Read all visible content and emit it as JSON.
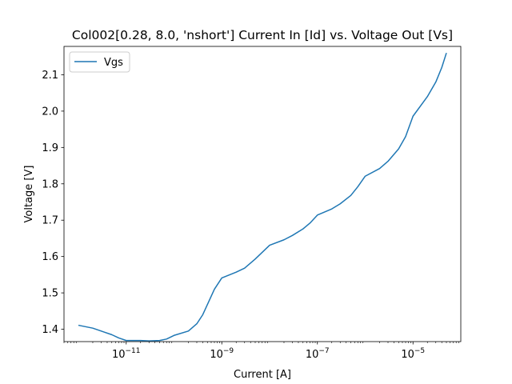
{
  "chart_data": {
    "type": "line",
    "title": "Col002[0.28, 8.0, 'nshort'] Current In [Id] vs. Voltage Out [Vs]",
    "xlabel": "Current [A]",
    "ylabel": "Voltage [V]",
    "xscale": "log",
    "xlim": [
      5e-13,
      0.0001
    ],
    "ylim": [
      1.366,
      2.178
    ],
    "x_ticks": [
      {
        "value": 1e-11,
        "base": "10",
        "exp": "−11"
      },
      {
        "value": 1e-09,
        "base": "10",
        "exp": "−9"
      },
      {
        "value": 1e-07,
        "base": "10",
        "exp": "−7"
      },
      {
        "value": 1e-05,
        "base": "10",
        "exp": "−5"
      }
    ],
    "y_ticks": [
      {
        "value": 1.4,
        "label": "1.4"
      },
      {
        "value": 1.5,
        "label": "1.5"
      },
      {
        "value": 1.6,
        "label": "1.6"
      },
      {
        "value": 1.7,
        "label": "1.7"
      },
      {
        "value": 1.8,
        "label": "1.8"
      },
      {
        "value": 1.9,
        "label": "1.9"
      },
      {
        "value": 2.0,
        "label": "2.0"
      },
      {
        "value": 2.1,
        "label": "2.1"
      }
    ],
    "grid": false,
    "legend_position": "top-left",
    "series": [
      {
        "name": "Vgs",
        "color": "#1f77b4",
        "x": [
          1e-12,
          2e-12,
          3e-12,
          5e-12,
          7e-12,
          1e-11,
          2e-11,
          3e-11,
          5e-11,
          7e-11,
          1e-10,
          2e-10,
          3e-10,
          4e-10,
          5e-10,
          7e-10,
          1e-09,
          2e-09,
          3e-09,
          5e-09,
          1e-08,
          2e-08,
          3e-08,
          5e-08,
          7e-08,
          1e-07,
          2e-07,
          3e-07,
          5e-07,
          7e-07,
          1e-06,
          2e-06,
          3e-06,
          5e-06,
          7e-06,
          1e-05,
          2e-05,
          3e-05,
          4e-05,
          5e-05
        ],
        "y": [
          1.411,
          1.403,
          1.395,
          1.385,
          1.376,
          1.369,
          1.369,
          1.368,
          1.369,
          1.373,
          1.383,
          1.395,
          1.415,
          1.44,
          1.468,
          1.51,
          1.541,
          1.557,
          1.568,
          1.593,
          1.631,
          1.646,
          1.658,
          1.676,
          1.692,
          1.714,
          1.731,
          1.745,
          1.768,
          1.792,
          1.821,
          1.842,
          1.862,
          1.896,
          1.93,
          1.986,
          2.04,
          2.08,
          2.12,
          2.16
        ]
      }
    ]
  }
}
